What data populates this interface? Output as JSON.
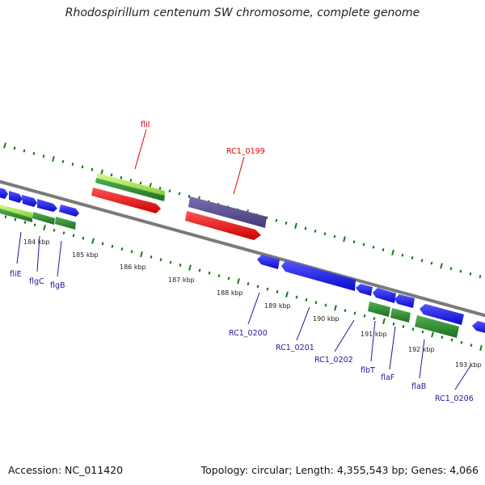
{
  "title": "Rhodospirillum centenum SW chromosome, complete genome",
  "footer": {
    "accession": "Accession: NC_011420",
    "topology": "Topology: circular; Length: 4,355,543 bp; Genes: 4,066"
  },
  "colors": {
    "backbone": "#808080",
    "tick": "#1a7a1a",
    "cds_blue": "#1a1aee",
    "cds_green": "#2e8b2e",
    "cds_lime": "#9be04b",
    "cds_red": "#ee1111",
    "cds_purple": "#5a4f8f",
    "label_red": "#dd0000",
    "label_blue": "#1a1a99"
  },
  "ticks": [
    {
      "label": "184 kbp"
    },
    {
      "label": "185 kbp"
    },
    {
      "label": "186 kbp"
    },
    {
      "label": "187 kbp"
    },
    {
      "label": "188 kbp"
    },
    {
      "label": "189 kbp"
    },
    {
      "label": "190 kbp"
    },
    {
      "label": "191 kbp"
    },
    {
      "label": "192 kbp"
    },
    {
      "label": "193 kbp"
    }
  ],
  "gene_labels": [
    {
      "text": "fliI",
      "color": "red"
    },
    {
      "text": "RC1_0199",
      "color": "red"
    },
    {
      "text": "fliE",
      "color": "blue"
    },
    {
      "text": "flgC",
      "color": "blue"
    },
    {
      "text": "flgB",
      "color": "blue"
    },
    {
      "text": "RC1_0200",
      "color": "blue"
    },
    {
      "text": "RC1_0201",
      "color": "blue"
    },
    {
      "text": "RC1_0202",
      "color": "blue"
    },
    {
      "text": "flbT",
      "color": "blue"
    },
    {
      "text": "flaF",
      "color": "blue"
    },
    {
      "text": "flaB",
      "color": "blue"
    },
    {
      "text": "RC1_0206",
      "color": "blue"
    }
  ]
}
